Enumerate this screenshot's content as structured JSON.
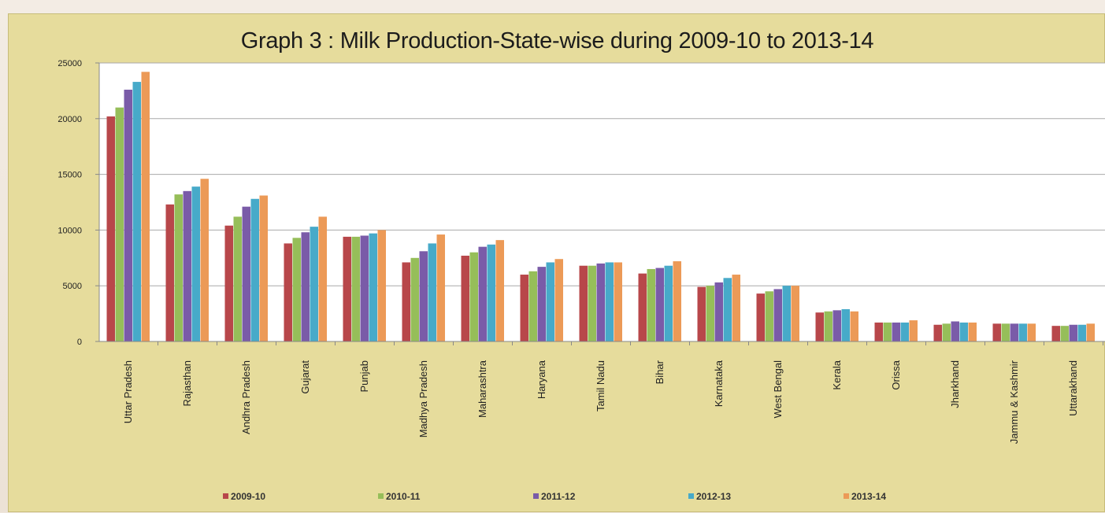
{
  "chart_data": {
    "type": "bar",
    "title": "Graph 3 : Milk Production-State-wise during 2009-10 to 2013-14",
    "xlabel": "",
    "ylabel": "",
    "ylim": [
      0,
      25000
    ],
    "yticks": [
      0,
      5000,
      10000,
      15000,
      20000,
      25000
    ],
    "grid": true,
    "legend_position": "bottom",
    "categories": [
      "Uttar Pradesh",
      "Rajasthan",
      "Andhra Pradesh",
      "Gujarat",
      "Punjab",
      "Madhya Pradesh",
      "Maharashtra",
      "Haryana",
      "Tamil Nadu",
      "Bihar",
      "Karnataka",
      "West Bengal",
      "Kerala",
      "Orissa",
      "Jharkhand",
      "Jammu & Kashmir",
      "Uttarakhand"
    ],
    "series": [
      {
        "name": "2009-10",
        "color": "#b8474a",
        "values": [
          20200,
          12300,
          10400,
          8800,
          9400,
          7100,
          7700,
          6000,
          6800,
          6100,
          4900,
          4300,
          2600,
          1700,
          1500,
          1600,
          1400
        ]
      },
      {
        "name": "2010-11",
        "color": "#96be59",
        "values": [
          21000,
          13200,
          11200,
          9300,
          9400,
          7500,
          8000,
          6300,
          6800,
          6500,
          5000,
          4500,
          2700,
          1700,
          1600,
          1600,
          1400
        ]
      },
      {
        "name": "2011-12",
        "color": "#7a5ba8",
        "values": [
          22600,
          13500,
          12100,
          9800,
          9500,
          8100,
          8500,
          6700,
          7000,
          6600,
          5300,
          4700,
          2800,
          1700,
          1800,
          1600,
          1500
        ]
      },
      {
        "name": "2012-13",
        "color": "#47aac9",
        "values": [
          23300,
          13900,
          12800,
          10300,
          9700,
          8800,
          8700,
          7100,
          7100,
          6800,
          5700,
          5000,
          2900,
          1700,
          1700,
          1600,
          1500
        ]
      },
      {
        "name": "2013-14",
        "color": "#ec9a57",
        "values": [
          24200,
          14600,
          13100,
          11200,
          10000,
          9600,
          9100,
          7400,
          7100,
          7200,
          6000,
          5000,
          2700,
          1900,
          1700,
          1600,
          1600
        ]
      }
    ]
  }
}
